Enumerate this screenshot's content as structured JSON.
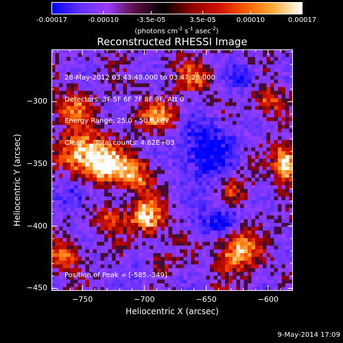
{
  "colorbar": {
    "tick_labels": [
      "-0.00017",
      "-0.00010",
      "-3.5e-05",
      "3.5e-05",
      "0.00010",
      "0.00017"
    ],
    "tick_values": [
      -0.00017,
      -0.0001,
      -3.5e-05,
      3.5e-05,
      0.0001,
      0.00017
    ],
    "range": [
      -0.00017,
      0.00017
    ],
    "units_main": "(photons cm",
    "units_sup1": "-2",
    "units_mid1": " s",
    "units_sup2": "-1",
    "units_mid2": " asec",
    "units_sup3": "-2",
    "units_end": ")",
    "colors": [
      "#0000ff",
      "#6030ff",
      "#9a3cff",
      "#5a1040",
      "#000000",
      "#8a0000",
      "#d01000",
      "#ff6000",
      "#ffb040",
      "#ffffff"
    ]
  },
  "chart_data": {
    "type": "heatmap",
    "title": "Reconstructed RHESSI Image",
    "xlabel": "Heliocentric X (arcsec)",
    "ylabel": "Heliocentric Y (arcsec)",
    "xlim": [
      -775,
      -580
    ],
    "ylim": [
      -452,
      -258
    ],
    "x_ticks": [
      -750,
      -700,
      -650,
      -600
    ],
    "y_ticks": [
      -450,
      -400,
      -350,
      -300
    ],
    "x_tick_labels": [
      "−750",
      "−700",
      "−650",
      "−600"
    ],
    "y_tick_labels": [
      "−450",
      "−400",
      "−350",
      "−300"
    ],
    "peak": [
      -585,
      -349
    ],
    "hot_regions": [
      {
        "x": -748,
        "y": -342,
        "sx": 14,
        "sy": 12,
        "amp": 0.9
      },
      {
        "x": -728,
        "y": -352,
        "sx": 12,
        "sy": 9,
        "amp": 0.75
      },
      {
        "x": -706,
        "y": -360,
        "sx": 10,
        "sy": 9,
        "amp": 0.6
      },
      {
        "x": -757,
        "y": -305,
        "sx": 10,
        "sy": 10,
        "amp": 0.55
      },
      {
        "x": -688,
        "y": -312,
        "sx": 12,
        "sy": 9,
        "amp": 0.55
      },
      {
        "x": -698,
        "y": -392,
        "sx": 10,
        "sy": 10,
        "amp": 0.8
      },
      {
        "x": -728,
        "y": -395,
        "sx": 8,
        "sy": 8,
        "amp": 0.5
      },
      {
        "x": -585,
        "y": -349,
        "sx": 7,
        "sy": 10,
        "amp": 1.0
      },
      {
        "x": -625,
        "y": -420,
        "sx": 12,
        "sy": 12,
        "amp": 0.75
      },
      {
        "x": -660,
        "y": -280,
        "sx": 10,
        "sy": 10,
        "amp": 0.45
      },
      {
        "x": -628,
        "y": -370,
        "sx": 10,
        "sy": 10,
        "amp": 0.4
      },
      {
        "x": -600,
        "y": -300,
        "sx": 9,
        "sy": 9,
        "amp": 0.45
      },
      {
        "x": -765,
        "y": -425,
        "sx": 9,
        "sy": 9,
        "amp": 0.5
      },
      {
        "x": -690,
        "y": -430,
        "sx": 9,
        "sy": 8,
        "amp": 0.4
      }
    ],
    "cold_regions": [
      {
        "x": -650,
        "y": -340,
        "sx": 16,
        "sy": 18,
        "amp": 0.6
      },
      {
        "x": -640,
        "y": -395,
        "sx": 12,
        "sy": 10,
        "amp": 0.5
      },
      {
        "x": -755,
        "y": -375,
        "sx": 10,
        "sy": 10,
        "amp": 0.35
      },
      {
        "x": -700,
        "y": -435,
        "sx": 10,
        "sy": 8,
        "amp": 0.3
      },
      {
        "x": -620,
        "y": -280,
        "sx": 10,
        "sy": 8,
        "amp": 0.35
      }
    ]
  },
  "info": {
    "line1": "28-May-2012 03:43:48.000 to 03:47:28.000",
    "line2": "Detectors: 3F 5F 6F 7F 8F 9F, Att 0",
    "line3": "Energy Range: 25.0 - 50.0 keV",
    "line4": "Clean     Total counts: 4.62E+03",
    "peak_text": "Position of Peak = [-585,-349]"
  },
  "timestamp": "9-May-2014 17:09"
}
